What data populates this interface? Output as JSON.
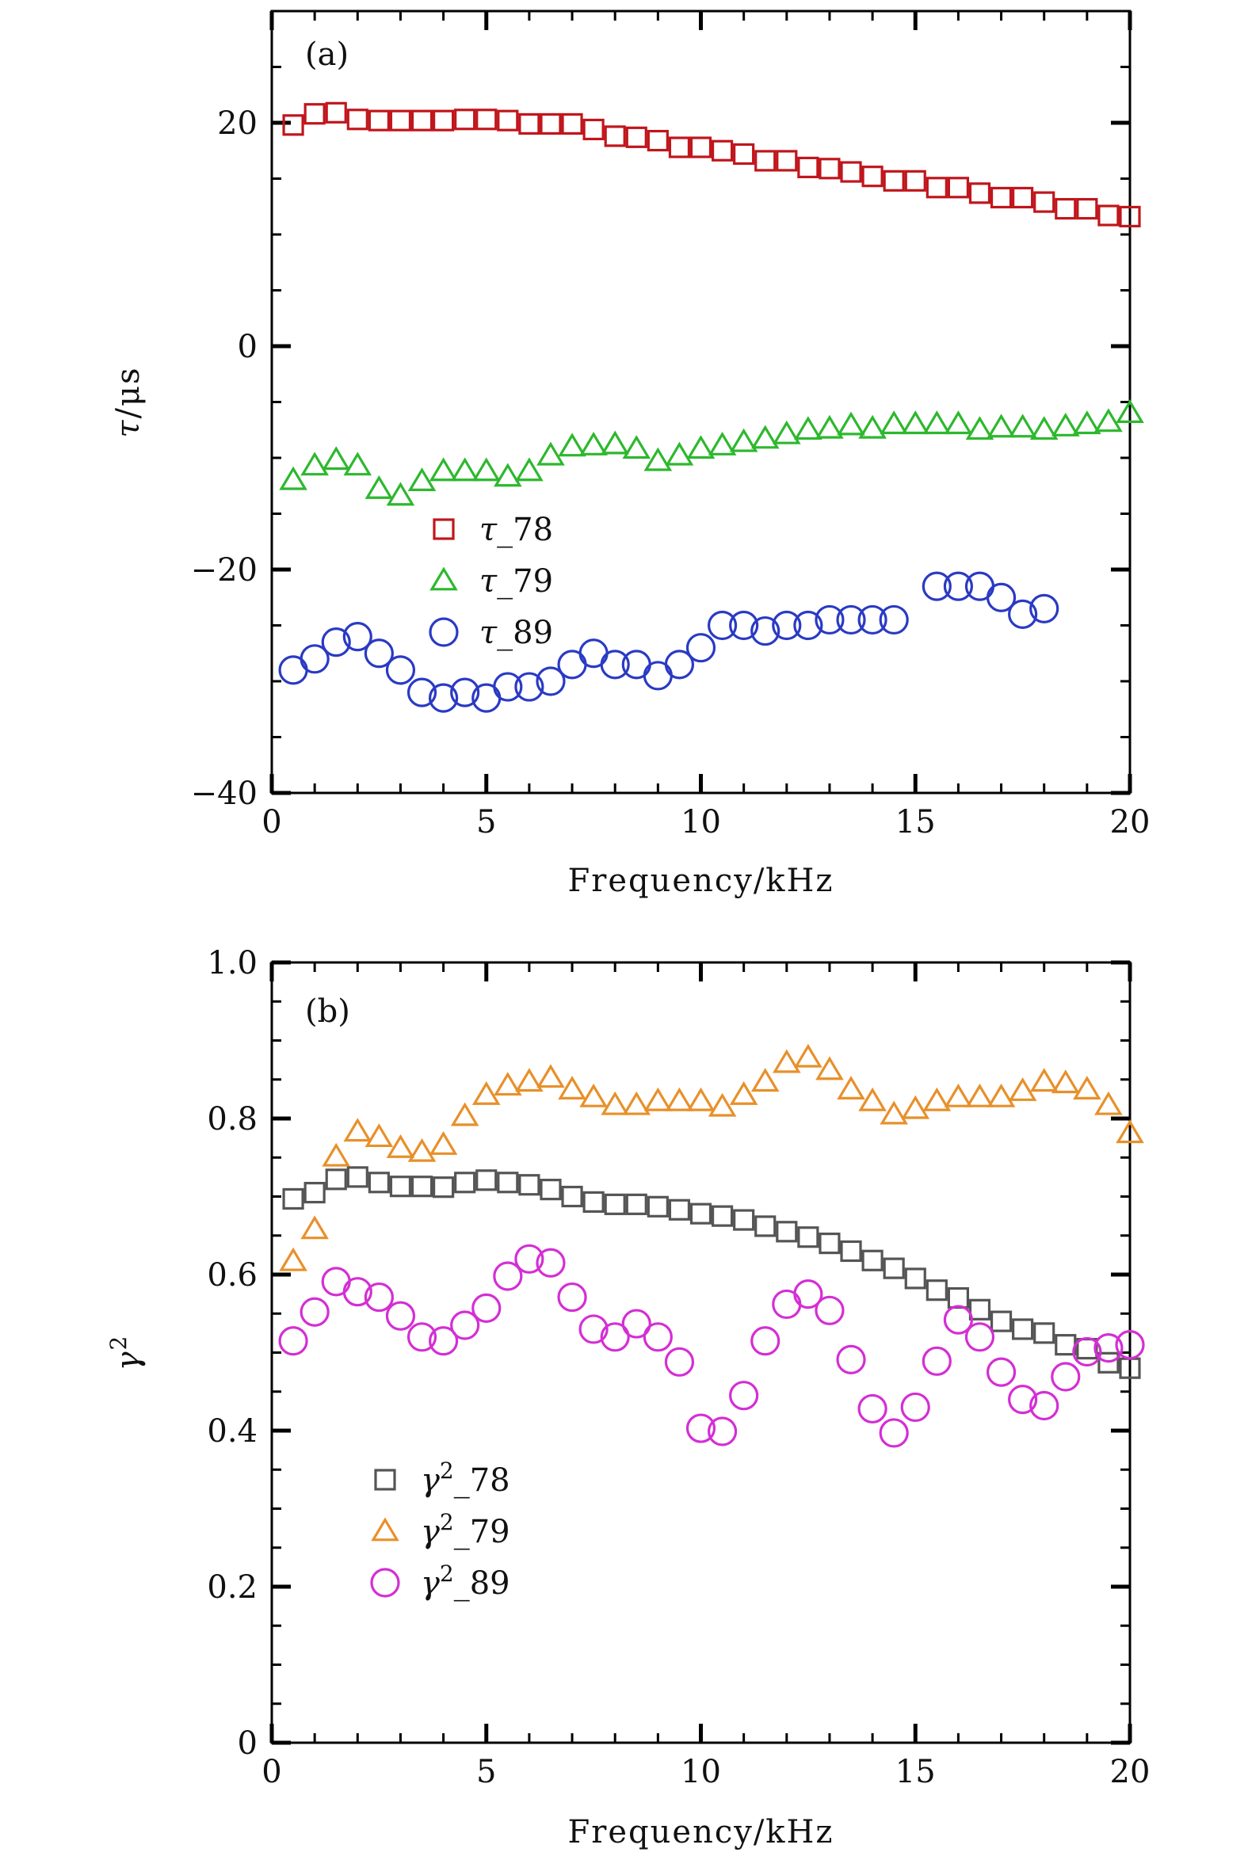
{
  "chart_data": [
    {
      "type": "scatter",
      "panel_label": "(a)",
      "ylabel": "τ/μs",
      "xlabel": "Frequency/kHz",
      "xlim": [
        0,
        20
      ],
      "ylim": [
        -40,
        30
      ],
      "xticks": [
        0,
        5,
        10,
        15,
        20
      ],
      "yticks": [
        -40,
        -20,
        0,
        20
      ],
      "ytick_labels": [
        "−40",
        "−20",
        "0",
        "20"
      ],
      "legend_position": "center-left",
      "series": [
        {
          "name": "τ_78",
          "marker": "square",
          "color": "#c0161c",
          "x": [
            0.5,
            1,
            1.5,
            2,
            2.5,
            3,
            3.5,
            4,
            4.5,
            5,
            5.5,
            6,
            6.5,
            7,
            7.5,
            8,
            8.5,
            9,
            9.5,
            10,
            10.5,
            11,
            11.5,
            12,
            12.5,
            13,
            13.5,
            14,
            14.5,
            15,
            15.5,
            16,
            16.5,
            17,
            17.5,
            18,
            18.5,
            19,
            19.5,
            20
          ],
          "y": [
            19.8,
            20.8,
            20.9,
            20.3,
            20.2,
            20.2,
            20.2,
            20.2,
            20.3,
            20.3,
            20.2,
            19.9,
            19.9,
            19.9,
            19.4,
            18.8,
            18.7,
            18.4,
            17.8,
            17.8,
            17.5,
            17.2,
            16.6,
            16.6,
            16.0,
            15.9,
            15.6,
            15.2,
            14.8,
            14.8,
            14.2,
            14.2,
            13.7,
            13.3,
            13.3,
            12.9,
            12.3,
            12.3,
            11.7,
            11.6
          ]
        },
        {
          "name": "τ_79",
          "marker": "triangle",
          "color": "#2db82d",
          "x": [
            0.5,
            1,
            1.5,
            2,
            2.5,
            3,
            3.5,
            4,
            4.5,
            5,
            5.5,
            6,
            6.5,
            7,
            7.5,
            8,
            8.5,
            9,
            9.5,
            10,
            10.5,
            11,
            11.5,
            12,
            12.5,
            13,
            13.5,
            14,
            14.5,
            15,
            15.5,
            16,
            16.5,
            17,
            17.5,
            18,
            18.5,
            19,
            19.5,
            20
          ],
          "y": [
            -12.0,
            -10.7,
            -10.2,
            -10.7,
            -12.8,
            -13.4,
            -12.1,
            -11.2,
            -11.2,
            -11.2,
            -11.7,
            -11.2,
            -9.8,
            -9.0,
            -8.9,
            -8.8,
            -9.2,
            -10.3,
            -9.8,
            -9.2,
            -8.9,
            -8.6,
            -8.3,
            -7.9,
            -7.5,
            -7.4,
            -7.1,
            -7.4,
            -7.0,
            -7.0,
            -7.0,
            -7.0,
            -7.5,
            -7.3,
            -7.3,
            -7.5,
            -7.2,
            -7.0,
            -6.8,
            -6.0
          ]
        },
        {
          "name": "τ_89",
          "marker": "circle",
          "color": "#2a3ac4",
          "x": [
            0.5,
            1,
            1.5,
            2,
            2.5,
            3,
            3.5,
            4,
            4.5,
            5,
            5.5,
            6,
            6.5,
            7,
            7.5,
            8,
            8.5,
            9,
            9.5,
            10,
            10.5,
            11,
            11.5,
            12,
            12.5,
            13,
            13.5,
            14,
            14.5,
            15.5,
            16,
            16.5,
            17,
            17.5,
            18
          ],
          "y": [
            -29.0,
            -28.0,
            -26.5,
            -26.0,
            -27.5,
            -29.0,
            -31.0,
            -31.5,
            -31.0,
            -31.5,
            -30.5,
            -30.5,
            -30.0,
            -28.5,
            -27.5,
            -28.5,
            -28.5,
            -29.5,
            -28.5,
            -27.0,
            -25.0,
            -25.0,
            -25.5,
            -25.0,
            -25.0,
            -24.5,
            -24.5,
            -24.5,
            -24.5,
            -21.5,
            -21.5,
            -21.5,
            -22.5,
            -24.0,
            -23.5
          ]
        }
      ]
    },
    {
      "type": "scatter",
      "panel_label": "(b)",
      "ylabel": "γ²",
      "xlabel": "Frequency/kHz",
      "xlim": [
        0,
        20
      ],
      "ylim": [
        0,
        1.0
      ],
      "xticks": [
        0,
        5,
        10,
        15,
        20
      ],
      "yticks": [
        0,
        0.2,
        0.4,
        0.6,
        0.8,
        1.0
      ],
      "ytick_labels": [
        "0",
        "0.2",
        "0.4",
        "0.6",
        "0.8",
        "1.0"
      ],
      "legend_position": "lower-left",
      "series": [
        {
          "name": "γ²_78",
          "marker": "square",
          "color": "#555555",
          "x": [
            0.5,
            1,
            1.5,
            2,
            2.5,
            3,
            3.5,
            4,
            4.5,
            5,
            5.5,
            6,
            6.5,
            7,
            7.5,
            8,
            8.5,
            9,
            9.5,
            10,
            10.5,
            11,
            11.5,
            12,
            12.5,
            13,
            13.5,
            14,
            14.5,
            15,
            15.5,
            16,
            16.5,
            17,
            17.5,
            18,
            18.5,
            19,
            19.5,
            20
          ],
          "y": [
            0.697,
            0.705,
            0.722,
            0.725,
            0.718,
            0.713,
            0.713,
            0.712,
            0.718,
            0.721,
            0.718,
            0.715,
            0.709,
            0.7,
            0.693,
            0.69,
            0.69,
            0.687,
            0.683,
            0.678,
            0.675,
            0.67,
            0.662,
            0.655,
            0.648,
            0.64,
            0.63,
            0.618,
            0.608,
            0.595,
            0.58,
            0.57,
            0.555,
            0.54,
            0.53,
            0.525,
            0.51,
            0.505,
            0.487,
            0.48
          ]
        },
        {
          "name": "γ²_79",
          "marker": "triangle",
          "color": "#e8902a",
          "x": [
            0.5,
            1,
            1.5,
            2,
            2.5,
            3,
            3.5,
            4,
            4.5,
            5,
            5.5,
            6,
            6.5,
            7,
            7.5,
            8,
            8.5,
            9,
            9.5,
            10,
            10.5,
            11,
            11.5,
            12,
            12.5,
            13,
            13.5,
            14,
            14.5,
            15,
            15.5,
            16,
            16.5,
            17,
            17.5,
            18,
            18.5,
            19,
            19.5,
            20
          ],
          "y": [
            0.617,
            0.658,
            0.751,
            0.783,
            0.776,
            0.762,
            0.757,
            0.766,
            0.803,
            0.83,
            0.842,
            0.847,
            0.852,
            0.837,
            0.827,
            0.817,
            0.817,
            0.822,
            0.822,
            0.822,
            0.815,
            0.83,
            0.847,
            0.871,
            0.878,
            0.862,
            0.837,
            0.822,
            0.805,
            0.812,
            0.822,
            0.827,
            0.827,
            0.827,
            0.835,
            0.847,
            0.845,
            0.837,
            0.817,
            0.781
          ]
        },
        {
          "name": "γ²_89",
          "marker": "circle",
          "color": "#d42ed4",
          "x": [
            0.5,
            1,
            1.5,
            2,
            2.5,
            3,
            3.5,
            4,
            4.5,
            5,
            5.5,
            6,
            6.5,
            7,
            7.5,
            8,
            8.5,
            9,
            9.5,
            10,
            10.5,
            11,
            11.5,
            12,
            12.5,
            13,
            13.5,
            14,
            14.5,
            15,
            15.5,
            16,
            16.5,
            17,
            17.5,
            18,
            18.5,
            19,
            19.5,
            20
          ],
          "y": [
            0.515,
            0.552,
            0.591,
            0.578,
            0.571,
            0.547,
            0.52,
            0.515,
            0.535,
            0.557,
            0.598,
            0.62,
            0.615,
            0.571,
            0.53,
            0.52,
            0.537,
            0.52,
            0.488,
            0.403,
            0.399,
            0.445,
            0.515,
            0.562,
            0.575,
            0.554,
            0.491,
            0.428,
            0.397,
            0.43,
            0.489,
            0.542,
            0.52,
            0.475,
            0.44,
            0.432,
            0.469,
            0.501,
            0.506,
            0.51
          ]
        }
      ]
    }
  ]
}
